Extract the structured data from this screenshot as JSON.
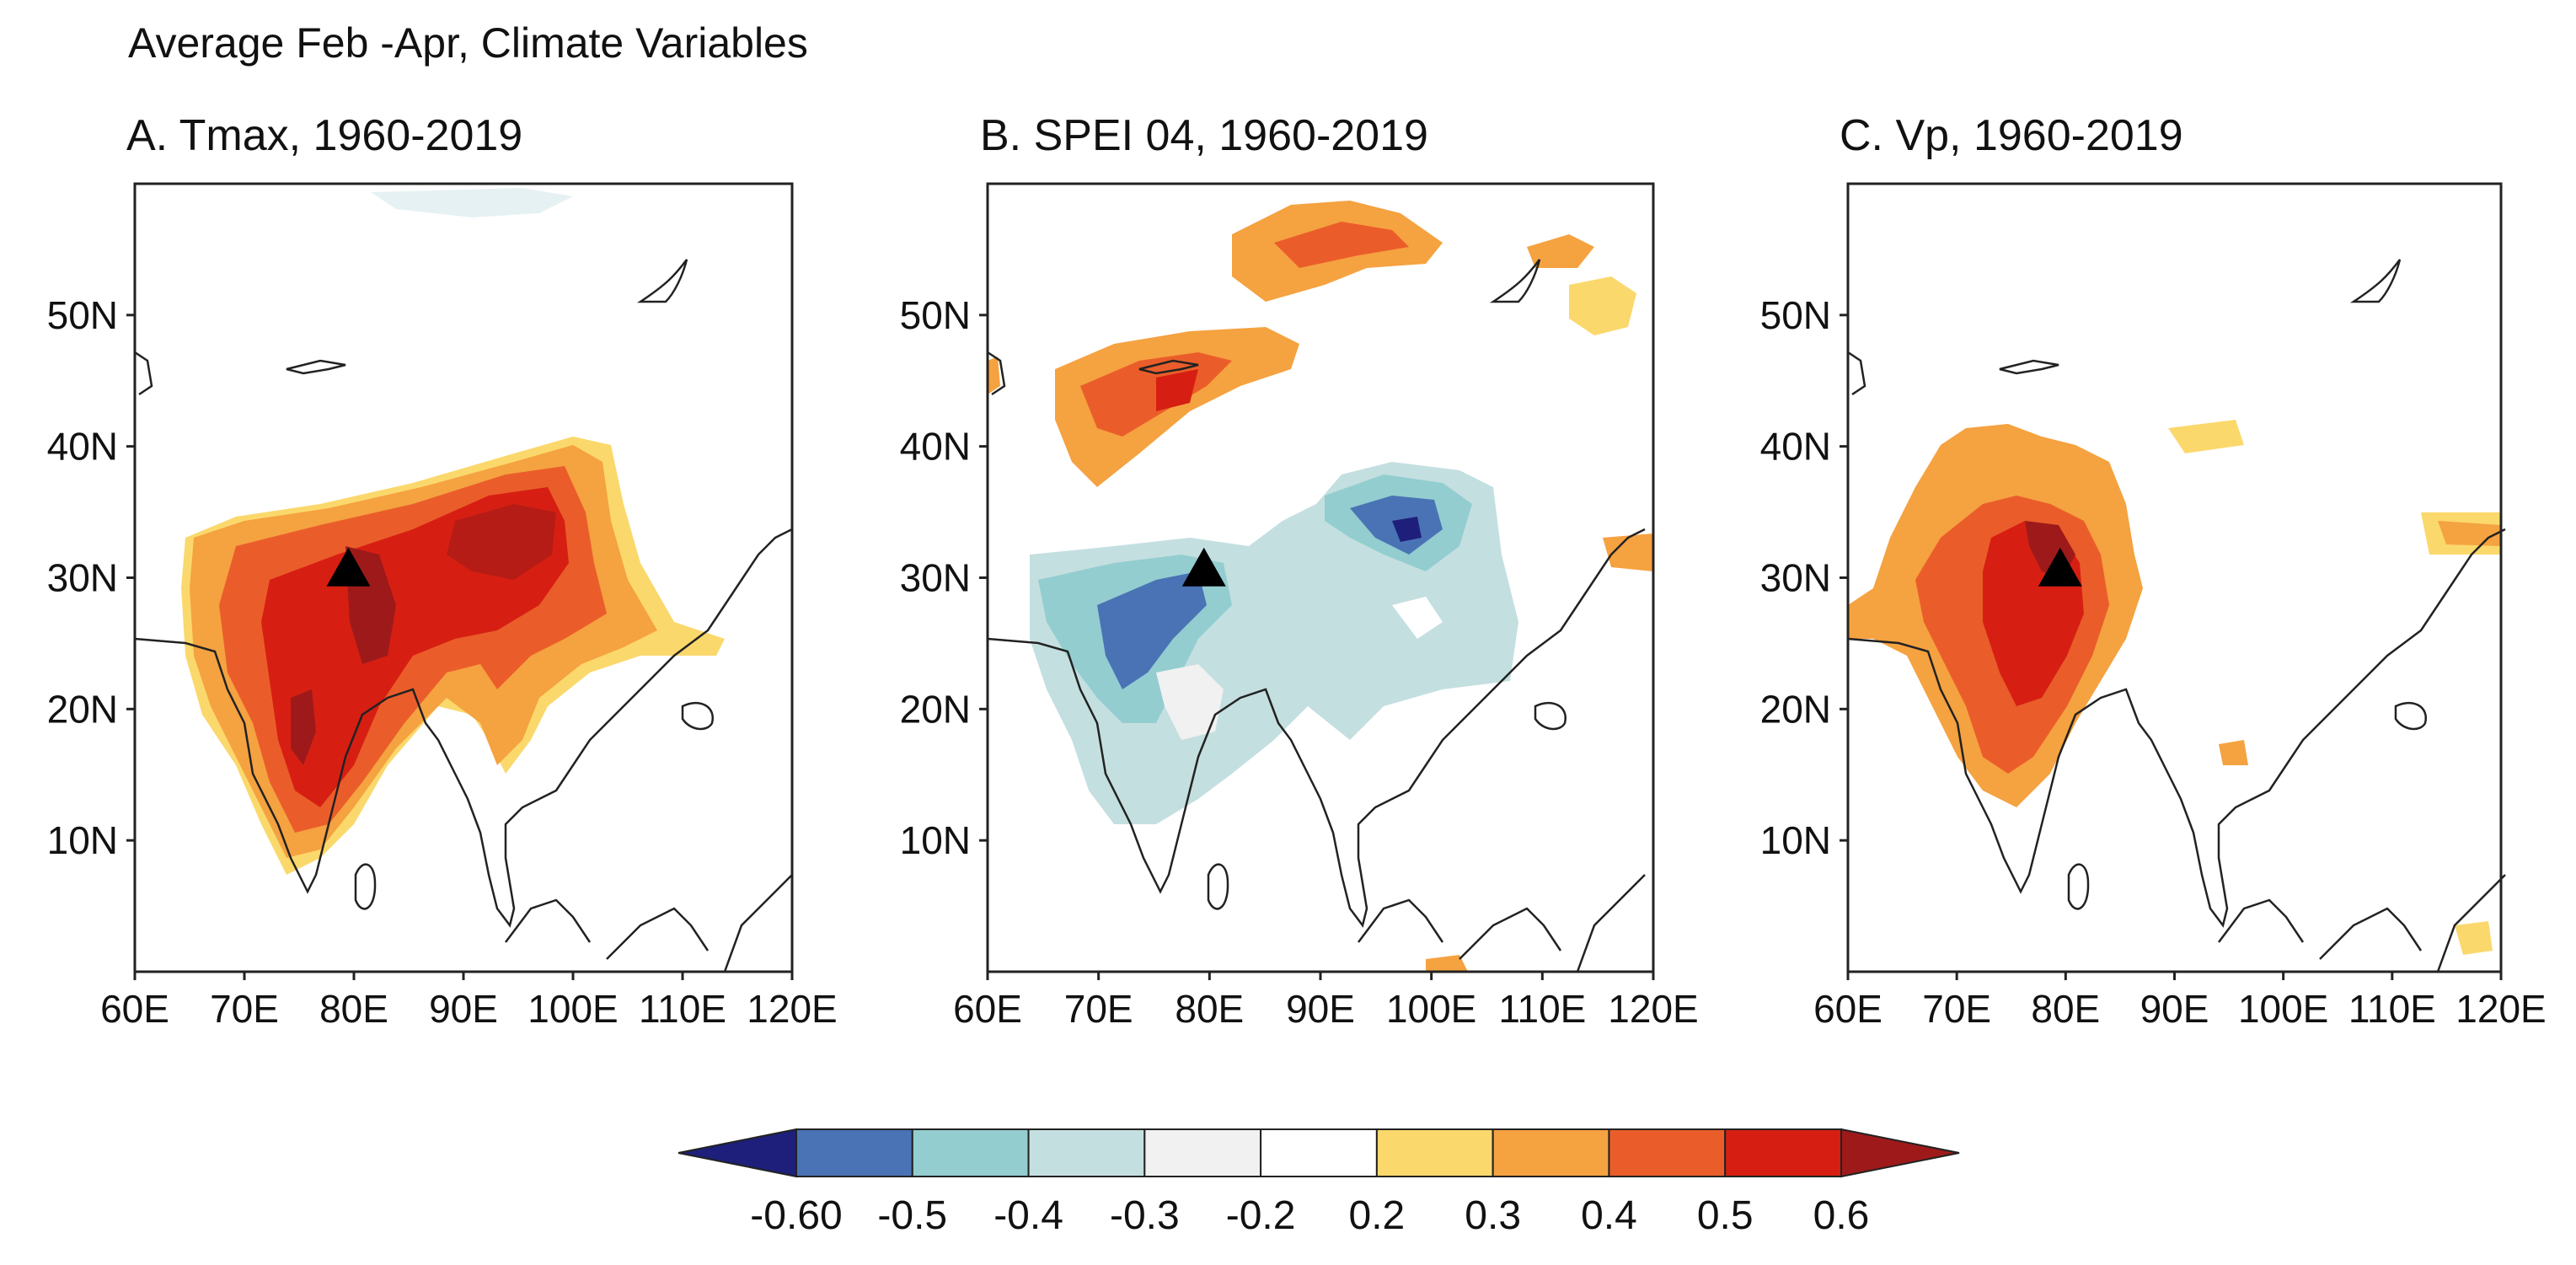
{
  "figure_title": "Average Feb -Apr, Climate Variables",
  "panels": [
    {
      "title": "A. Tmax, 1960-2019",
      "variable": "Tmax"
    },
    {
      "title": "B. SPEI 04, 1960-2019",
      "variable": "SPEI 04"
    },
    {
      "title": "C. Vp, 1960-2019",
      "variable": "Vp"
    }
  ],
  "axes": {
    "lon_range": [
      60,
      120
    ],
    "lat_range": [
      0,
      60
    ],
    "lon_ticks": [
      "60E",
      "70E",
      "80E",
      "90E",
      "100E",
      "110E",
      "120E"
    ],
    "lat_ticks": [
      "10N",
      "20N",
      "30N",
      "40N",
      "50N"
    ]
  },
  "marker": {
    "label": "triangle-marker",
    "lon": 79.5,
    "lat": 30.5
  },
  "colorbar": {
    "labels": [
      "-0.60",
      "-0.5",
      "-0.4",
      "-0.3",
      "-0.2",
      "0.2",
      "0.3",
      "0.4",
      "0.5",
      "0.6"
    ],
    "colors": [
      "#1e1f7a",
      "#4a73b5",
      "#93cdd0",
      "#c4dfe0",
      "#f1f1f1",
      "#ffffff",
      "#fbd86c",
      "#f5a240",
      "#ea5d2a",
      "#d61f12",
      "#9e1a1a"
    ]
  },
  "chart_data": {
    "type": "heatmap",
    "title": "Average Feb -Apr, Climate Variables",
    "xlabel": "",
    "ylabel": "",
    "xlim": [
      60,
      120
    ],
    "ylim": [
      0,
      60
    ],
    "series": [
      {
        "name": "A. Tmax, 1960-2019",
        "note": "positive correlation 0.3-0.6 over South Asia and Tibetan Plateau"
      },
      {
        "name": "B. SPEI 04, 1960-2019",
        "note": "negative -0.2 to -0.5 over NW India / Tibet; positive 0.3-0.5 over Central Asia and Siberia"
      },
      {
        "name": "C. Vp, 1960-2019",
        "note": "positive 0.3-0.6 over India, maximum near 80E 25-30N"
      }
    ]
  }
}
